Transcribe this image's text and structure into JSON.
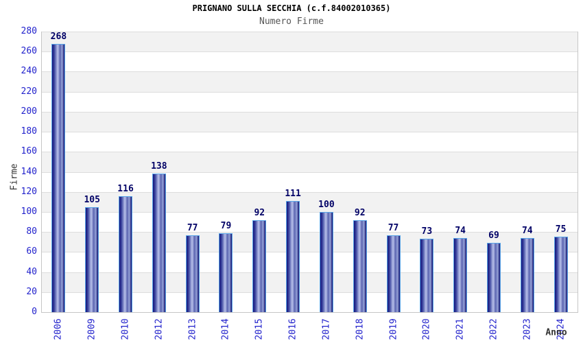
{
  "chart_data": {
    "type": "bar",
    "title": "PRIGNANO SULLA SECCHIA (c.f.84002010365)",
    "subtitle": "Numero Firme",
    "xlabel": "Anno",
    "ylabel": "Firme",
    "categories": [
      "2006",
      "2009",
      "2010",
      "2012",
      "2013",
      "2014",
      "2015",
      "2016",
      "2017",
      "2018",
      "2019",
      "2020",
      "2021",
      "2022",
      "2023",
      "2024"
    ],
    "values": [
      268,
      105,
      116,
      138,
      77,
      79,
      92,
      111,
      100,
      92,
      77,
      73,
      74,
      69,
      74,
      75
    ],
    "ylim": [
      0,
      280
    ],
    "ytick_step": 20,
    "grid": true,
    "legend": "none",
    "band_style": "alternating",
    "colors": {
      "bar_dark": "#13137a",
      "bar_light": "#b9c1ea",
      "bar_border": "#58a5e8",
      "tick_label": "#2222cc",
      "value_label": "#000066",
      "axis_title": "#333333",
      "title": "#000000",
      "subtitle": "#555555",
      "band_gray": "#f2f2f2",
      "gridline": "#dddddd",
      "axis_line": "#c6c6c6"
    }
  }
}
